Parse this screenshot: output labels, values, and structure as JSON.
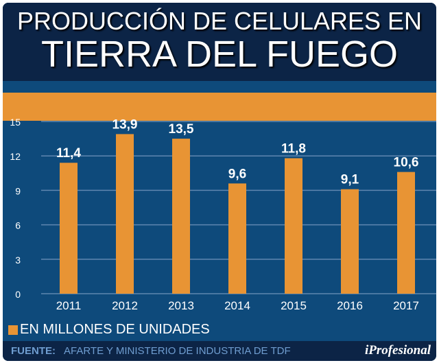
{
  "title_line1": "PRODUCCIÓN DE CELULARES EN",
  "title_line2": "TIERRA DEL FUEGO",
  "legend": "EN MILLONES DE UNIDADES",
  "source_label": "FUENTE:",
  "source_text": "AFARTE Y MINISTERIO DE INDUSTRIA DE TDF",
  "logo": "iProfesional",
  "colors": {
    "bar": "#e89434",
    "background": "#0e4a7b",
    "header": "#0c2446"
  },
  "chart_data": {
    "type": "bar",
    "categories": [
      "2011",
      "2012",
      "2013",
      "2014",
      "2015",
      "2016",
      "2017"
    ],
    "values": [
      11.4,
      13.9,
      13.5,
      9.6,
      11.8,
      9.1,
      10.6
    ],
    "data_labels": [
      "11,4",
      "13,9",
      "13,5",
      "9,6",
      "11,8",
      "9,1",
      "10,6"
    ],
    "yticks": [
      0,
      3,
      6,
      9,
      12,
      15
    ],
    "ylim": [
      0,
      15
    ],
    "grid": true,
    "legend_placement": "bottom-left"
  }
}
